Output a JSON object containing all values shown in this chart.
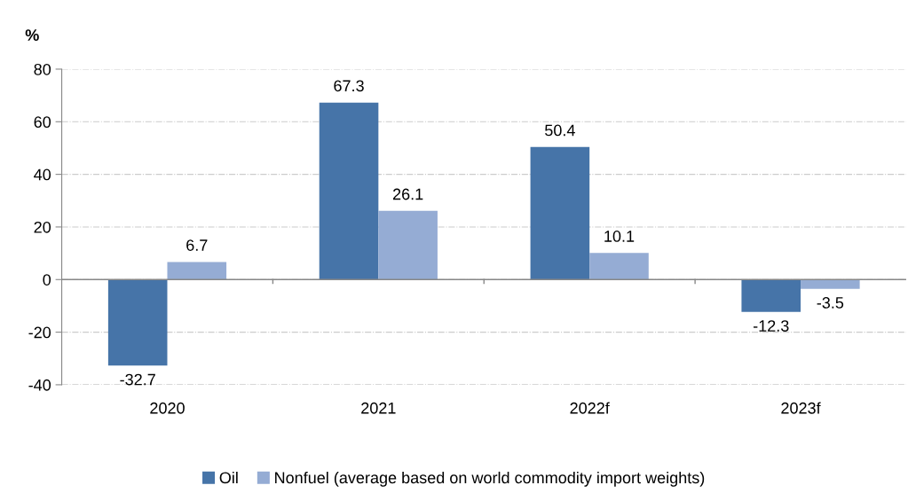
{
  "chart_data": {
    "type": "bar",
    "ylabel": "%",
    "categories": [
      "2020",
      "2021",
      "2022f",
      "2023f"
    ],
    "series": [
      {
        "name": "Oil",
        "color": "#4674a8",
        "values": [
          -32.7,
          67.3,
          50.4,
          -12.3
        ]
      },
      {
        "name": "Nonfuel (average based on world commodity import weights)",
        "color": "#95acd4",
        "values": [
          6.7,
          26.1,
          10.1,
          -3.5
        ]
      }
    ],
    "ylim": [
      -40,
      80
    ],
    "yticks": [
      -40,
      -20,
      0,
      20,
      40,
      60,
      80
    ],
    "grid": "y",
    "legend": "bottom",
    "data_labels": true
  }
}
